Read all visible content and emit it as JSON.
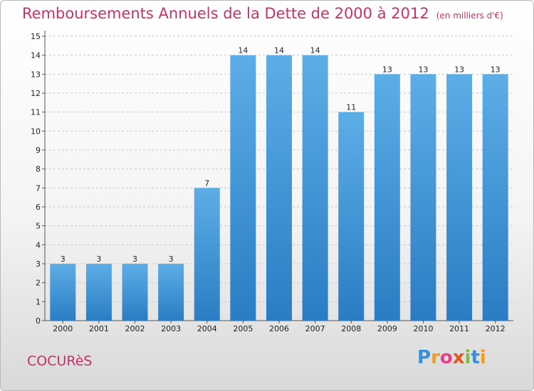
{
  "header": {
    "title": "Remboursements Annuels de la Dette de 2000 à 2012",
    "unit": "(en milliers d'€)"
  },
  "footer": {
    "place": "COCURèS",
    "logo_letters": [
      "P",
      "r",
      "o",
      "x",
      "i",
      "t",
      "i"
    ],
    "logo_colors": [
      "#3a8fd6",
      "#f29b1d",
      "#e83e8c",
      "#e8541e",
      "#7ac143",
      "#3a8fd6",
      "#f29b1d"
    ]
  },
  "chart_data": {
    "type": "bar",
    "categories": [
      "2000",
      "2001",
      "2002",
      "2003",
      "2004",
      "2005",
      "2006",
      "2007",
      "2008",
      "2009",
      "2010",
      "2011",
      "2012"
    ],
    "values": [
      3,
      3,
      3,
      3,
      7,
      14,
      14,
      14,
      11,
      13,
      13,
      13,
      13
    ],
    "data_labels": [
      "3",
      "3",
      "3",
      "3",
      "7",
      "14",
      "14",
      "14",
      "11",
      "13",
      "13",
      "13",
      "13"
    ],
    "ylim": [
      0,
      15
    ],
    "yticks": [
      "0",
      "1",
      "2",
      "3",
      "4",
      "5",
      "6",
      "7",
      "8",
      "9",
      "10",
      "11",
      "12",
      "13",
      "14",
      "15"
    ],
    "grid": true,
    "colors": {
      "bar_top": "#5dade6",
      "bar_bottom": "#2a7dc3",
      "grid": "#c8c8c8",
      "axis": "#555555"
    }
  }
}
